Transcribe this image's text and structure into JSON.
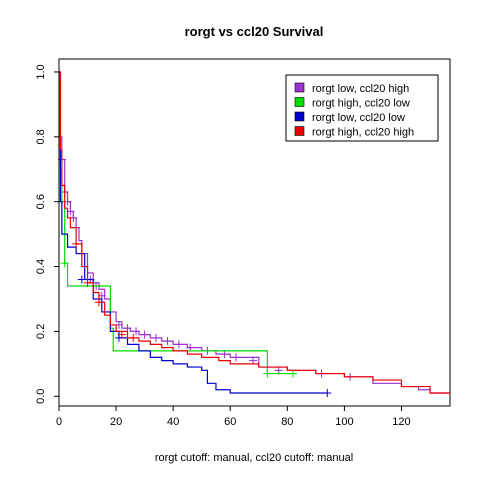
{
  "chart_data": {
    "type": "line",
    "title": "rorgt vs ccl20 Survival",
    "xlabel": "rorgt cutoff: manual, ccl20 cutoff: manual",
    "ylabel": "",
    "xlim": [
      0,
      137
    ],
    "ylim": [
      -0.03,
      1.04
    ],
    "x_ticks": [
      0,
      20,
      40,
      60,
      80,
      100,
      120
    ],
    "y_ticks": [
      0.0,
      0.2,
      0.4,
      0.6,
      0.8,
      1.0
    ],
    "x_tick_labels": [
      "0",
      "20",
      "40",
      "60",
      "80",
      "100",
      "120"
    ],
    "y_tick_labels": [
      "0.0",
      "0.2",
      "0.4",
      "0.6",
      "0.8",
      "1.0"
    ],
    "grid": false,
    "legend_position": "top-right",
    "series": [
      {
        "name": "rorgt low, ccl20 high",
        "color": "#9a32cd",
        "x": [
          0,
          0.5,
          1,
          2,
          3,
          4,
          5,
          6,
          7,
          8,
          10,
          12,
          14,
          16,
          18,
          20,
          22,
          25,
          28,
          32,
          36,
          40,
          45,
          50,
          55,
          60,
          70,
          80,
          90,
          100,
          110,
          120,
          126,
          130,
          137
        ],
        "y": [
          1.0,
          0.8,
          0.73,
          0.63,
          0.6,
          0.57,
          0.55,
          0.52,
          0.48,
          0.44,
          0.38,
          0.35,
          0.33,
          0.3,
          0.26,
          0.23,
          0.21,
          0.2,
          0.19,
          0.18,
          0.17,
          0.16,
          0.15,
          0.14,
          0.13,
          0.12,
          0.09,
          0.08,
          0.07,
          0.06,
          0.04,
          0.03,
          0.02,
          0.01,
          0.01
        ],
        "censor_x": [
          1,
          2,
          3,
          4,
          5,
          6,
          8,
          11,
          13,
          15,
          18,
          21,
          24,
          27,
          30,
          34,
          38,
          42,
          46,
          52,
          58,
          62,
          68,
          77,
          92,
          102
        ],
        "censor_y": [
          0.73,
          0.63,
          0.6,
          0.57,
          0.55,
          0.52,
          0.44,
          0.36,
          0.34,
          0.31,
          0.26,
          0.22,
          0.21,
          0.2,
          0.19,
          0.18,
          0.17,
          0.16,
          0.15,
          0.14,
          0.13,
          0.12,
          0.11,
          0.08,
          0.07,
          0.06
        ]
      },
      {
        "name": "rorgt high, ccl20 low",
        "color": "#00dd00",
        "x": [
          0,
          0.5,
          1,
          2,
          3,
          17,
          18,
          19,
          72,
          73,
          82
        ],
        "y": [
          1.0,
          0.7,
          0.6,
          0.41,
          0.34,
          0.34,
          0.21,
          0.14,
          0.14,
          0.07,
          0.07
        ],
        "censor_x": [
          1,
          2,
          73,
          82
        ],
        "censor_y": [
          0.6,
          0.41,
          0.07,
          0.07
        ]
      },
      {
        "name": "rorgt low, ccl20 low",
        "color": "#0000cc",
        "x": [
          0,
          0.5,
          1,
          3,
          6,
          9,
          12,
          15,
          18,
          21,
          24,
          28,
          32,
          36,
          40,
          45,
          50,
          52,
          55,
          60,
          90,
          94
        ],
        "y": [
          1.0,
          0.6,
          0.5,
          0.46,
          0.44,
          0.36,
          0.3,
          0.26,
          0.2,
          0.18,
          0.16,
          0.14,
          0.12,
          0.11,
          0.1,
          0.09,
          0.08,
          0.04,
          0.02,
          0.01,
          0.01,
          0.01
        ],
        "censor_x": [
          8,
          21,
          94
        ],
        "censor_y": [
          0.36,
          0.18,
          0.01
        ]
      },
      {
        "name": "rorgt high, ccl20 high",
        "color": "#ee0000",
        "x": [
          0,
          0.5,
          1,
          2,
          3,
          4,
          6,
          8,
          10,
          12,
          14,
          16,
          18,
          20,
          24,
          28,
          32,
          36,
          40,
          45,
          50,
          56,
          60,
          70,
          80,
          90,
          100,
          110,
          120,
          130,
          137
        ],
        "y": [
          1.0,
          0.76,
          0.65,
          0.58,
          0.55,
          0.52,
          0.47,
          0.4,
          0.35,
          0.32,
          0.29,
          0.25,
          0.22,
          0.2,
          0.18,
          0.17,
          0.16,
          0.15,
          0.14,
          0.13,
          0.12,
          0.11,
          0.1,
          0.09,
          0.08,
          0.07,
          0.06,
          0.05,
          0.03,
          0.01,
          0.01
        ],
        "censor_x": [
          6,
          10,
          14,
          22,
          26
        ],
        "censor_y": [
          0.47,
          0.35,
          0.29,
          0.19,
          0.18
        ]
      }
    ]
  }
}
